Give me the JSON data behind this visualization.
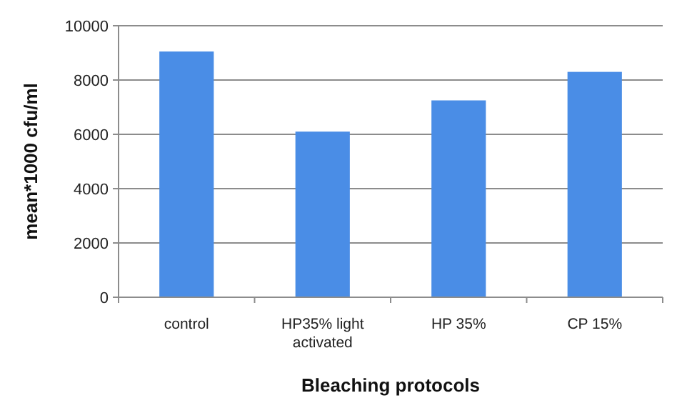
{
  "chart_data": {
    "type": "bar",
    "xlabel": "Bleaching protocols",
    "ylabel": "mean*1000 cfu/ml",
    "categories": [
      "control",
      "HP35% light activated",
      "HP 35%",
      "CP 15%"
    ],
    "values": [
      9050,
      6100,
      7250,
      8300
    ],
    "color": "#4a8de6",
    "ylim": [
      0,
      10000
    ],
    "yticks": [
      0,
      2000,
      4000,
      6000,
      8000,
      10000
    ],
    "grid": "y"
  }
}
